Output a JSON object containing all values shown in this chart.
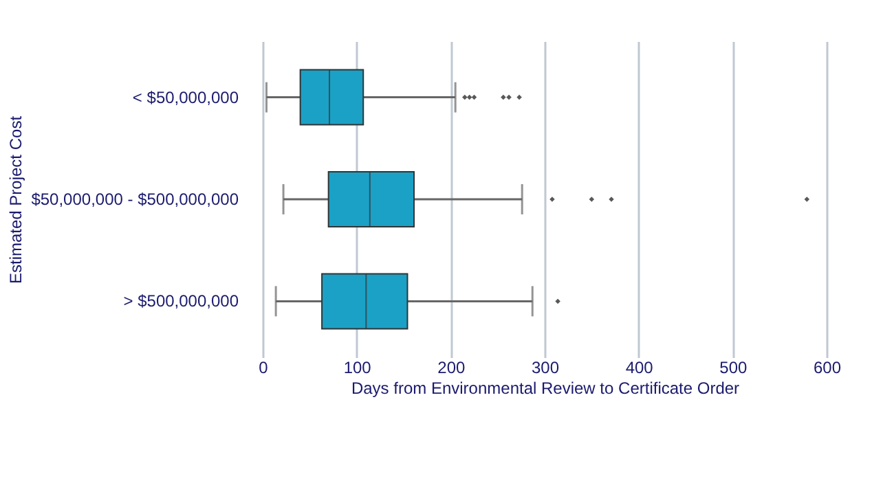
{
  "chart_data": {
    "type": "box",
    "orientation": "horizontal",
    "xlabel": "Days from Environmental Review to Certificate Order",
    "ylabel": "Estimated Project Cost",
    "categories": [
      "< $50,000,000",
      "$50,000,000 - $500,000,000",
      "> $500,000,000"
    ],
    "color": "#1ba1c6",
    "boxes": [
      {
        "low": 4,
        "q1": 40,
        "median": 71,
        "q3": 107,
        "high": 205,
        "outliers": [
          215,
          220,
          225,
          256,
          262,
          273
        ]
      },
      {
        "low": 22,
        "q1": 70,
        "median": 114,
        "q3": 161,
        "high": 276,
        "outliers": [
          308,
          350,
          371,
          579
        ]
      },
      {
        "low": 14,
        "q1": 63,
        "median": 110,
        "q3": 154,
        "high": 287,
        "outliers": [
          314
        ]
      }
    ],
    "xlim": [
      0,
      600
    ],
    "xticks": [
      0,
      100,
      200,
      300,
      400,
      500,
      600
    ],
    "grid": "x"
  }
}
